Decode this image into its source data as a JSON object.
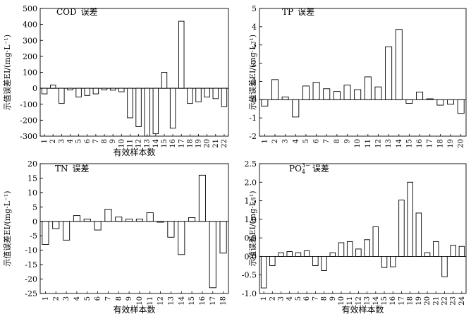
{
  "chart_data": [
    {
      "type": "bar",
      "title": "COD 误差",
      "title_main": "COD",
      "title_sub": "",
      "title_suffix": "误差",
      "xlabel": "有效样本数",
      "ylabel": "示值误差EI/(mg·L⁻¹)",
      "categories": [
        "1",
        "2",
        "3",
        "4",
        "5",
        "6",
        "7",
        "8",
        "9",
        "10",
        "11",
        "12",
        "13",
        "14",
        "15",
        "16",
        "17",
        "18",
        "19",
        "20",
        "21",
        "22"
      ],
      "values": [
        -35,
        20,
        -95,
        -10,
        -55,
        -45,
        -35,
        -10,
        -12,
        -22,
        -185,
        -240,
        -300,
        -285,
        100,
        -250,
        420,
        -95,
        -85,
        -55,
        -65,
        -115
      ],
      "ylim": [
        -300,
        500
      ],
      "yticks": [
        -300,
        -200,
        -100,
        0,
        100,
        200,
        300,
        400,
        500
      ],
      "grid": false,
      "legend": "none"
    },
    {
      "type": "bar",
      "title": "TP 误差",
      "title_main": "TP",
      "title_sub": "",
      "title_suffix": "误差",
      "xlabel": "",
      "ylabel": "示值误差EI/(mg·L⁻¹)",
      "categories": [
        "1",
        "2",
        "3",
        "4",
        "5",
        "6",
        "7",
        "8",
        "9",
        "10",
        "11",
        "12",
        "13",
        "14",
        "15",
        "16",
        "17",
        "18",
        "19",
        "20"
      ],
      "values": [
        -0.35,
        1.1,
        0.15,
        -0.95,
        0.75,
        0.95,
        0.6,
        0.45,
        0.8,
        0.55,
        1.25,
        0.7,
        2.9,
        3.85,
        -0.2,
        0.42,
        0.05,
        -0.3,
        -0.25,
        -0.75
      ],
      "ylim": [
        -2,
        5
      ],
      "yticks": [
        -2,
        -1,
        0,
        1,
        2,
        3,
        4,
        5
      ],
      "grid": false,
      "legend": "none"
    },
    {
      "type": "bar",
      "title": "TN 误差",
      "title_main": "TN",
      "title_sub": "",
      "title_suffix": "误差",
      "xlabel": "有效样本数",
      "ylabel": "示值误差EI/(mg·L⁻¹)",
      "categories": [
        "1",
        "2",
        "3",
        "4",
        "5",
        "6",
        "7",
        "8",
        "9",
        "10",
        "11",
        "12",
        "13",
        "14",
        "15",
        "16",
        "17",
        "18"
      ],
      "values": [
        -8,
        -2.5,
        -6.5,
        2,
        0.8,
        -3,
        4.2,
        1.5,
        0.8,
        0.8,
        3,
        -0.3,
        -5.5,
        -11.5,
        1.3,
        16,
        -23,
        -11
      ],
      "ylim": [
        -25,
        20
      ],
      "yticks": [
        -25,
        -20,
        -15,
        -10,
        -5,
        0,
        5,
        10,
        15,
        20
      ],
      "grid": false,
      "legend": "none"
    },
    {
      "type": "bar",
      "title": "PO43− 误差",
      "title_main": "PO",
      "title_sub": "4",
      "title_sup": "3−",
      "title_suffix": "误差",
      "xlabel": "有效样本数",
      "ylabel": "示值误差EI/(mg·L⁻¹)",
      "categories": [
        "1",
        "2",
        "3",
        "4",
        "5",
        "6",
        "7",
        "8",
        "9",
        "10",
        "11",
        "12",
        "13",
        "14",
        "15",
        "16",
        "17",
        "18",
        "19",
        "20",
        "21",
        "22",
        "23",
        "24"
      ],
      "values": [
        -0.85,
        -0.25,
        0.1,
        0.13,
        0.1,
        0.15,
        -0.25,
        -0.38,
        0.1,
        0.37,
        0.4,
        0.2,
        0.45,
        0.8,
        -0.3,
        -0.28,
        1.52,
        2.0,
        1.17,
        0.1,
        0.4,
        -0.55,
        0.3,
        0.27
      ],
      "ylim": [
        -1.0,
        2.5
      ],
      "yticks": [
        -1.0,
        -0.5,
        0,
        0.5,
        1.0,
        1.5,
        2.0,
        2.5
      ],
      "ytick_decimals": 1,
      "grid": false,
      "legend": "none"
    }
  ]
}
